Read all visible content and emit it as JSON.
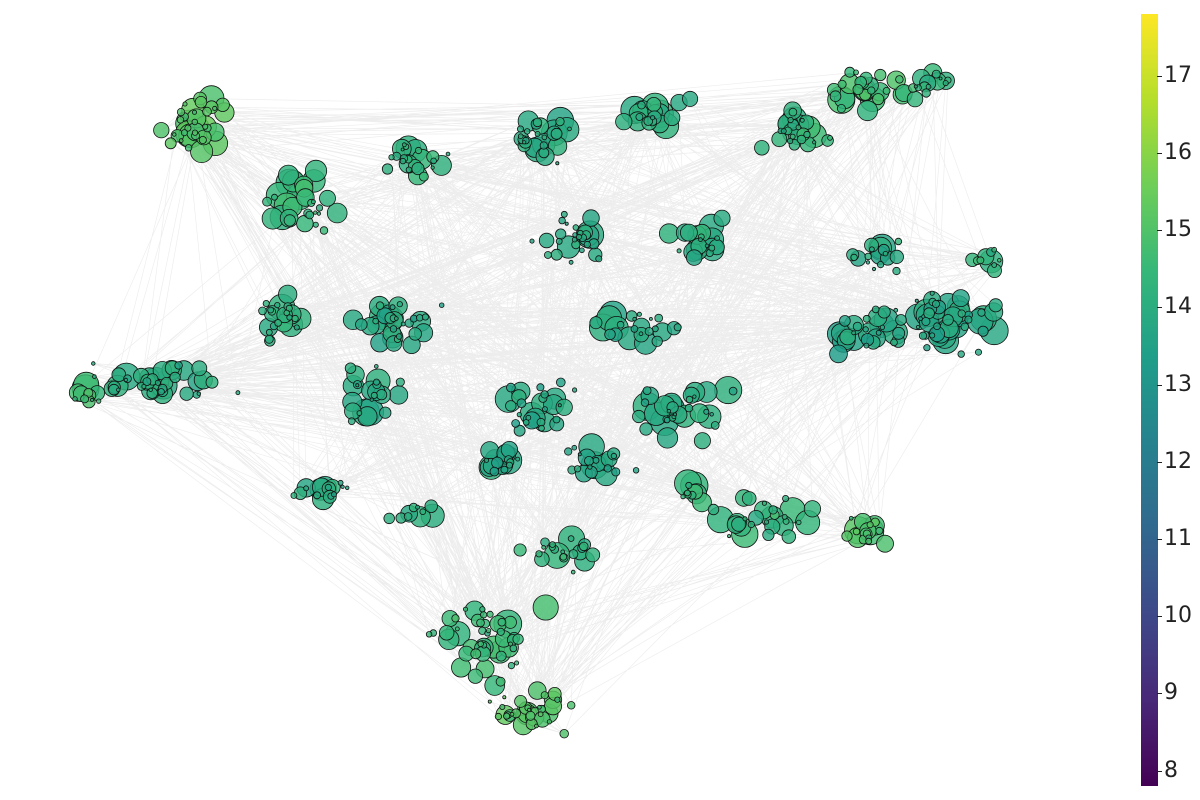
{
  "colormap": {
    "name": "viridis",
    "stops": [
      "#440154",
      "#482878",
      "#3e4989",
      "#31688e",
      "#26828e",
      "#1f9e89",
      "#35b779",
      "#6ece58",
      "#b5de2b",
      "#fde725"
    ],
    "min": 7.8,
    "max": 17.8
  },
  "colorbar": {
    "ticks": [
      {
        "value": 8,
        "label": "8"
      },
      {
        "value": 9,
        "label": "9"
      },
      {
        "value": 10,
        "label": "10"
      },
      {
        "value": 11,
        "label": "11"
      },
      {
        "value": 12,
        "label": "12"
      },
      {
        "value": 13,
        "label": "13"
      },
      {
        "value": 14,
        "label": "14"
      },
      {
        "value": 15,
        "label": "15"
      },
      {
        "value": 16,
        "label": "16"
      },
      {
        "value": 17,
        "label": "17"
      }
    ]
  },
  "style": {
    "edge_color": "#000000",
    "node_stroke": "#111111"
  }
}
